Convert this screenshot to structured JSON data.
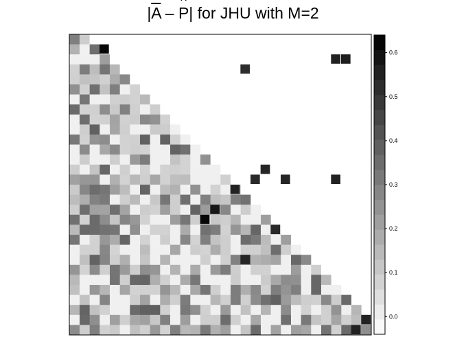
{
  "chart_data": {
    "type": "heatmap",
    "title": {
      "prefix": "|",
      "bar_letter": "A",
      "minus": " – ",
      "hat_letter": "P",
      "suffix": "| for JHU with M=2"
    },
    "grid_size": 30,
    "colorbar": {
      "ticks": [
        0.0,
        0.1,
        0.2,
        0.3,
        0.4,
        0.5,
        0.6
      ],
      "tick_labels": [
        "0.0",
        "0.1",
        "0.2",
        "0.3",
        "0.4",
        "0.5",
        "0.6"
      ],
      "range": [
        -0.04,
        0.64
      ],
      "color_low": "#ffffff",
      "color_high": "#000000"
    },
    "upper_cells": [
      {
        "row": 1,
        "col": 3,
        "value": 0.62
      },
      {
        "row": 2,
        "col": 26,
        "value": 0.55
      },
      {
        "row": 2,
        "col": 27,
        "value": 0.56
      },
      {
        "row": 3,
        "col": 17,
        "value": 0.52
      },
      {
        "row": 13,
        "col": 19,
        "value": 0.54
      },
      {
        "row": 14,
        "col": 18,
        "value": 0.53
      },
      {
        "row": 14,
        "col": 21,
        "value": 0.54
      },
      {
        "row": 14,
        "col": 26,
        "value": 0.55
      },
      {
        "row": 15,
        "col": 16,
        "value": 0.55
      },
      {
        "row": 17,
        "col": 14,
        "value": 0.58
      },
      {
        "row": 18,
        "col": 13,
        "value": 0.62
      },
      {
        "row": 19,
        "col": 20,
        "value": 0.53
      },
      {
        "row": 22,
        "col": 17,
        "value": 0.54
      },
      {
        "row": 29,
        "col": 28,
        "value": 0.55
      },
      {
        "row": 28,
        "col": 29,
        "value": 0.55
      }
    ]
  }
}
